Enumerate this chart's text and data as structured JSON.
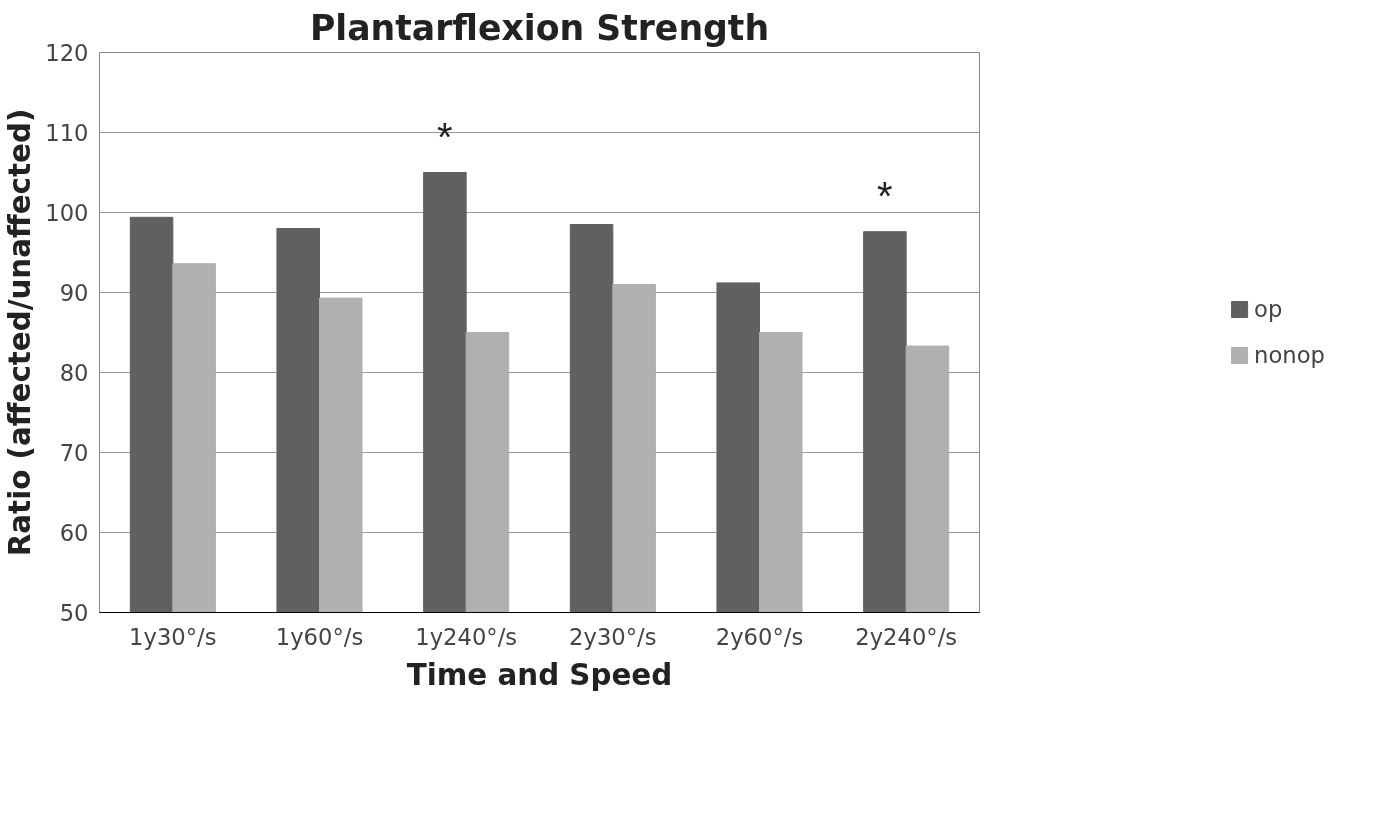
{
  "chart_data": {
    "type": "bar",
    "title": "Plantarflexion Strength",
    "xlabel": "Time and Speed",
    "ylabel": "Ratio (affected/unaffected)",
    "categories": [
      "1y30°/s",
      "1y60°/s",
      "1y240°/s",
      "2y30°/s",
      "2y60°/s",
      "2y240°/s"
    ],
    "series": [
      {
        "name": "op",
        "color": "#606060",
        "values": [
          99.4,
          98,
          105,
          98.5,
          91.2,
          97.6
        ]
      },
      {
        "name": "nonop",
        "color": "#b0b0b0",
        "values": [
          93.6,
          89.3,
          85,
          91,
          85,
          83.3
        ]
      }
    ],
    "ylim": [
      50,
      120
    ],
    "yticks": [
      50,
      60,
      70,
      80,
      90,
      100,
      110,
      120
    ],
    "grid": "y",
    "legend": "right",
    "annotations": [
      {
        "text": "*",
        "x": "1y240°/s",
        "y": 105
      },
      {
        "text": "*",
        "x": "2y240°/s",
        "y": 97.6
      }
    ]
  }
}
